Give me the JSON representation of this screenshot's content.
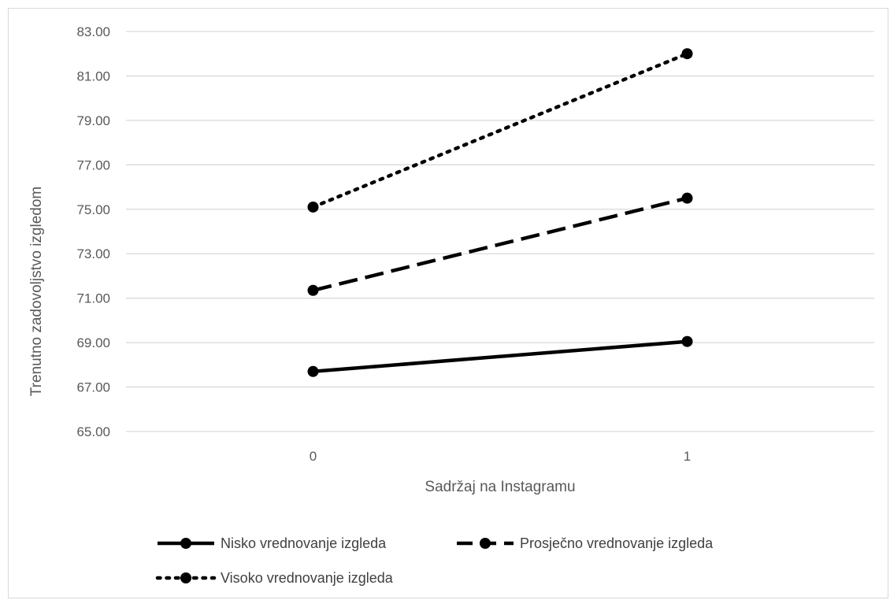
{
  "chart_data": {
    "type": "line",
    "title": "",
    "xlabel": "Sadržaj na Instagramu",
    "ylabel": "Trenutno zadovoljstvo izgledom",
    "categories": [
      "0",
      "1"
    ],
    "ylim": [
      65,
      83
    ],
    "yticks": [
      "65.00",
      "67.00",
      "69.00",
      "71.00",
      "73.00",
      "75.00",
      "77.00",
      "79.00",
      "81.00",
      "83.00"
    ],
    "grid": "horizontal",
    "legend_position": "bottom",
    "series": [
      {
        "name": "Nisko vrednovanje izgleda",
        "values": [
          67.7,
          69.05
        ],
        "line_style": "solid",
        "color": "#000000"
      },
      {
        "name": "Prosječno vrednovanje izgleda",
        "values": [
          71.35,
          75.5
        ],
        "line_style": "dashed",
        "color": "#000000"
      },
      {
        "name": "Visoko vrednovanje izgleda",
        "values": [
          75.1,
          82.0
        ],
        "line_style": "dotted",
        "color": "#000000"
      }
    ]
  }
}
